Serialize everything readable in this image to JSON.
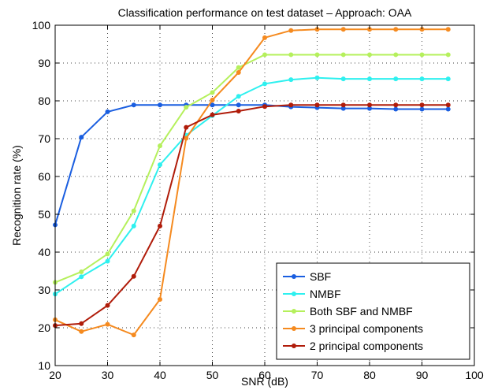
{
  "chart_data": {
    "type": "line",
    "title": "Classification performance on test dataset – Approach: OAA",
    "xlabel": "SNR (dB)",
    "ylabel": "Recognition rate (%)",
    "xlim": [
      20,
      100
    ],
    "ylim": [
      10,
      100
    ],
    "xticks": [
      "20",
      "30",
      "40",
      "50",
      "60",
      "70",
      "80",
      "90",
      "100"
    ],
    "yticks": [
      "10",
      "20",
      "30",
      "40",
      "50",
      "60",
      "70",
      "80",
      "90",
      "100"
    ],
    "grid": true,
    "legend_position": "bottom-right",
    "x": [
      20,
      25,
      30,
      35,
      40,
      45,
      50,
      55,
      60,
      65,
      70,
      75,
      80,
      85,
      90,
      95
    ],
    "series": [
      {
        "name": "SBF",
        "color": "#1a5ee0",
        "values": [
          47.2,
          70.4,
          77.1,
          78.9,
          78.9,
          78.9,
          78.9,
          78.9,
          78.9,
          78.4,
          78.2,
          78.0,
          78.0,
          77.8,
          77.8,
          77.8
        ]
      },
      {
        "name": "NMBF",
        "color": "#2ef0ef",
        "values": [
          28.9,
          33.5,
          37.6,
          46.9,
          63.1,
          70.9,
          76.1,
          81.2,
          84.5,
          85.6,
          86.1,
          85.8,
          85.8,
          85.8,
          85.8,
          85.8
        ]
      },
      {
        "name": "Both SBF and NMBF",
        "color": "#b5f05c",
        "values": [
          32.0,
          34.8,
          39.5,
          50.9,
          68.1,
          78.3,
          82.2,
          88.8,
          92.2,
          92.2,
          92.2,
          92.2,
          92.2,
          92.2,
          92.2,
          92.2
        ]
      },
      {
        "name": "3 principal components",
        "color": "#f58a1f",
        "values": [
          22.1,
          19.0,
          20.9,
          18.1,
          27.5,
          70.1,
          80.2,
          87.5,
          96.7,
          98.6,
          98.9,
          98.9,
          98.9,
          98.9,
          98.9,
          98.9
        ]
      },
      {
        "name": "2 principal components",
        "color": "#b01c0a",
        "values": [
          20.6,
          21.1,
          25.9,
          33.6,
          46.9,
          73.0,
          76.3,
          77.3,
          78.5,
          78.9,
          78.9,
          78.9,
          78.9,
          78.9,
          78.9,
          78.9
        ]
      }
    ]
  }
}
